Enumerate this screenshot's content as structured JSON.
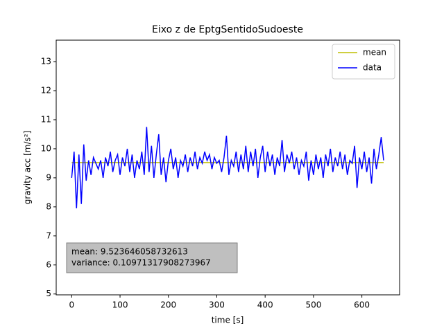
{
  "chart_data": {
    "type": "line",
    "title": "Eixo z de EptgSentidoSudoeste",
    "x_label": "time [s]",
    "y_label": "gravity acc [m/s²]",
    "xlim": [
      -32,
      678
    ],
    "ylim": [
      4.97,
      13.74
    ],
    "xticks": [
      0,
      100,
      200,
      300,
      400,
      500,
      600
    ],
    "yticks": [
      5,
      6,
      7,
      8,
      9,
      10,
      11,
      12,
      13
    ],
    "legend": "upper right",
    "annotations": [
      "mean: 9.523646058732613",
      "variance: 0.10971317908273967"
    ],
    "series": [
      {
        "name": "mean",
        "color": "#bfbf00",
        "x": [
          0,
          645
        ],
        "values": [
          9.523646058732613,
          9.523646058732613
        ]
      },
      {
        "name": "data",
        "color": "#0000ff",
        "x": [
          0,
          5,
          10,
          15,
          20,
          25,
          30,
          35,
          40,
          45,
          50,
          55,
          60,
          65,
          70,
          75,
          80,
          85,
          90,
          95,
          100,
          105,
          110,
          115,
          120,
          125,
          130,
          135,
          140,
          145,
          150,
          155,
          160,
          165,
          170,
          175,
          180,
          185,
          190,
          195,
          200,
          205,
          210,
          215,
          220,
          225,
          230,
          235,
          240,
          245,
          250,
          255,
          260,
          265,
          270,
          275,
          280,
          285,
          290,
          295,
          300,
          305,
          310,
          315,
          320,
          325,
          330,
          335,
          340,
          345,
          350,
          355,
          360,
          365,
          370,
          375,
          380,
          385,
          390,
          395,
          400,
          405,
          410,
          415,
          420,
          425,
          430,
          435,
          440,
          445,
          450,
          455,
          460,
          465,
          470,
          475,
          480,
          485,
          490,
          495,
          500,
          505,
          510,
          515,
          520,
          525,
          530,
          535,
          540,
          545,
          550,
          555,
          560,
          565,
          570,
          575,
          580,
          585,
          590,
          595,
          600,
          605,
          610,
          615,
          620,
          625,
          630,
          635,
          640,
          645
        ],
        "values": [
          9.0,
          9.9,
          7.95,
          9.8,
          8.1,
          10.15,
          8.9,
          9.6,
          9.1,
          9.7,
          9.5,
          9.3,
          9.6,
          9.0,
          9.7,
          9.4,
          9.9,
          9.2,
          9.6,
          9.8,
          9.1,
          9.7,
          9.4,
          10.0,
          9.2,
          9.8,
          9.0,
          9.6,
          9.3,
          9.9,
          9.1,
          10.75,
          9.2,
          10.1,
          9.0,
          9.8,
          10.5,
          9.1,
          9.7,
          8.85,
          9.6,
          10.0,
          9.3,
          9.7,
          9.0,
          9.6,
          9.4,
          9.8,
          9.2,
          9.7,
          9.4,
          9.9,
          9.3,
          9.7,
          9.5,
          9.9,
          9.6,
          9.8,
          9.3,
          9.7,
          9.5,
          9.6,
          9.2,
          9.7,
          10.45,
          9.1,
          9.6,
          9.4,
          9.9,
          9.2,
          9.8,
          9.3,
          10.1,
          9.2,
          9.9,
          9.4,
          10.0,
          9.0,
          9.7,
          10.1,
          9.2,
          9.9,
          9.4,
          9.8,
          9.1,
          9.7,
          9.4,
          10.3,
          9.2,
          9.8,
          9.5,
          9.9,
          9.3,
          9.7,
          9.1,
          9.6,
          9.4,
          9.9,
          8.9,
          9.6,
          9.1,
          9.8,
          9.3,
          9.7,
          9.0,
          9.8,
          9.4,
          10.0,
          9.2,
          9.7,
          9.4,
          9.9,
          9.3,
          9.8,
          9.1,
          9.6,
          9.5,
          10.1,
          8.65,
          9.7,
          9.3,
          9.9,
          9.2,
          9.7,
          8.8,
          10.0,
          9.3,
          9.8,
          10.4,
          9.6
        ]
      }
    ]
  }
}
